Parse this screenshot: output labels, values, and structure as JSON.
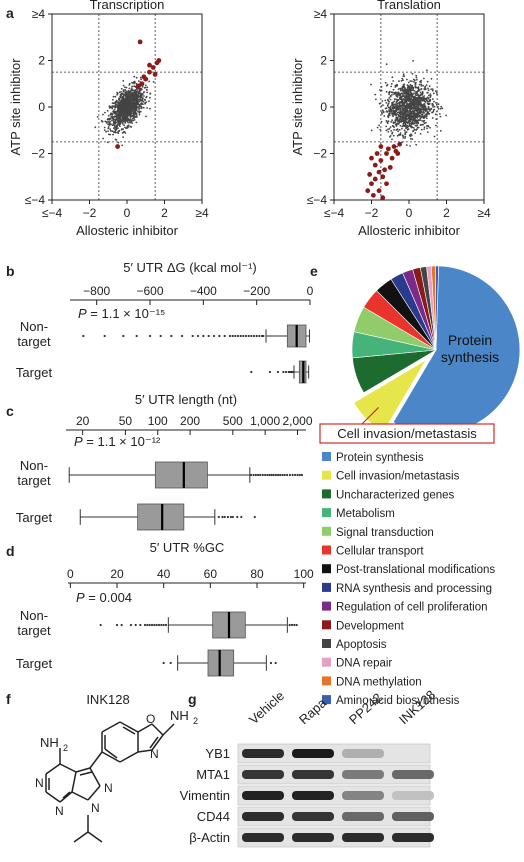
{
  "panel_letters": {
    "a": "a",
    "b": "b",
    "c": "c",
    "d": "d",
    "e": "e",
    "f": "f",
    "g": "g"
  },
  "chart_data": [
    {
      "type": "scatter",
      "panel": "a",
      "title": "Transcription",
      "xlabel": "Allosteric inhibitor",
      "ylabel": "ATP site inhibitor",
      "xlim": [
        -4,
        4
      ],
      "ylim": [
        -4,
        4
      ],
      "x_ticks": [
        "≤−4",
        "−2",
        "0",
        "2",
        "≥4"
      ],
      "y_ticks": [
        "≤−4",
        "−2",
        "0",
        "2",
        "≥4"
      ],
      "thresholds": [
        -1.5,
        1.5
      ],
      "cloud": {
        "center": [
          0,
          0
        ],
        "spread": [
          0.45,
          0.45
        ],
        "tilt": 0.55,
        "color": "#444444"
      },
      "highlight": {
        "color": "#8b1a1a",
        "points": [
          [
            0.8,
            1.0
          ],
          [
            1.0,
            1.2
          ],
          [
            1.2,
            1.5
          ],
          [
            1.4,
            1.7
          ],
          [
            1.6,
            1.9
          ],
          [
            1.5,
            1.4
          ],
          [
            0.9,
            1.3
          ],
          [
            1.2,
            1.8
          ],
          [
            0.6,
            0.9
          ],
          [
            0.7,
            2.8
          ],
          [
            1.7,
            2.0
          ],
          [
            -0.5,
            -1.7
          ]
        ]
      }
    },
    {
      "type": "scatter",
      "panel": "a",
      "title": "Translation",
      "xlabel": "Allosteric inhibitor",
      "ylabel": "ATP site inhibitor",
      "xlim": [
        -4,
        4
      ],
      "ylim": [
        -4,
        4
      ],
      "x_ticks": [
        "≤−4",
        "−2",
        "0",
        "2",
        "≥4"
      ],
      "y_ticks": [
        "≤−4",
        "−2",
        "0",
        "2",
        "≥4"
      ],
      "thresholds": [
        -1.5,
        1.5
      ],
      "cloud": {
        "center": [
          0,
          0
        ],
        "spread": [
          0.6,
          0.55
        ],
        "tilt": 0.1,
        "color": "#444444"
      },
      "highlight": {
        "color": "#8b1a1a",
        "points": [
          [
            -1.2,
            -2.0
          ],
          [
            -1.5,
            -2.3
          ],
          [
            -1.8,
            -2.5
          ],
          [
            -1.4,
            -3.0
          ],
          [
            -2.0,
            -3.3
          ],
          [
            -1.6,
            -3.6
          ],
          [
            -1.9,
            -3.8
          ],
          [
            -1.1,
            -1.8
          ],
          [
            -0.8,
            -1.7
          ],
          [
            -0.5,
            -1.6
          ],
          [
            -1.3,
            -2.7
          ],
          [
            -2.1,
            -2.9
          ],
          [
            -1.7,
            -2.0
          ],
          [
            -0.9,
            -2.2
          ],
          [
            -1.2,
            -3.3
          ],
          [
            -2.2,
            -3.6
          ],
          [
            -1.5,
            -1.7
          ],
          [
            -0.6,
            -2.0
          ],
          [
            -1.0,
            -2.6
          ],
          [
            -1.8,
            -3.1
          ],
          [
            -1.4,
            -3.9
          ],
          [
            -2.0,
            -2.2
          ],
          [
            -0.7,
            -1.9
          ],
          [
            -1.6,
            -2.8
          ]
        ]
      }
    },
    {
      "type": "boxplot",
      "panel": "b",
      "title": "5′ UTR ΔG (kcal mol⁻¹)",
      "scale": "linear",
      "xlim": [
        -900,
        0
      ],
      "ticks": [
        -800,
        -600,
        -400,
        -200,
        0
      ],
      "tick_labels": [
        "−800",
        "−600",
        "−400",
        "−200",
        "0"
      ],
      "p_value": "1.1 × 10⁻¹⁵",
      "groups": [
        {
          "label": "Non-target",
          "whisker_low": -165,
          "q1": -85,
          "median": -50,
          "q3": -15,
          "whisker_high": -2,
          "outliers": [
            -850,
            -770,
            -700,
            -650,
            -600,
            -560,
            -520,
            -480,
            -440,
            -420,
            -400,
            -380,
            -360,
            -340,
            -320,
            -300,
            -290,
            -280,
            -270,
            -260,
            -250,
            -240,
            -230,
            -220,
            -210,
            -200,
            -190,
            -180,
            -175
          ]
        },
        {
          "label": "Target",
          "whisker_low": -60,
          "q1": -40,
          "median": -25,
          "q3": -15,
          "whisker_high": -5,
          "outliers": [
            -220,
            -150,
            -120,
            -100,
            -90,
            -80,
            -75,
            -70,
            -65
          ]
        }
      ]
    },
    {
      "type": "boxplot",
      "panel": "c",
      "title": "5′ UTR length (nt)",
      "scale": "log",
      "xlim": [
        14,
        2400
      ],
      "ticks": [
        20,
        50,
        100,
        200,
        500,
        1000,
        2000
      ],
      "tick_labels": [
        "20",
        "50",
        "100",
        "200",
        "500",
        "1,000",
        "2,000"
      ],
      "p_value": "1.1 × 10⁻¹²",
      "groups": [
        {
          "label": "Non-target",
          "whisker_low": 15,
          "q1": 95,
          "median": 175,
          "q3": 290,
          "whisker_high": 720,
          "outliers": [
            740,
            780,
            820,
            860,
            900,
            950,
            1000,
            1050,
            1100,
            1150,
            1200,
            1260,
            1320,
            1380,
            1450,
            1520,
            1600,
            1700,
            1800,
            1900,
            2000,
            2100,
            2200
          ]
        },
        {
          "label": "Target",
          "whisker_low": 19,
          "q1": 65,
          "median": 110,
          "q3": 175,
          "whisker_high": 340,
          "outliers": [
            370,
            400,
            420,
            450,
            480,
            500,
            550,
            600,
            800
          ]
        }
      ]
    },
    {
      "type": "boxplot",
      "panel": "d",
      "title": "5′ UTR %GC",
      "scale": "linear",
      "xlim": [
        -1,
        101
      ],
      "ticks": [
        0,
        20,
        40,
        60,
        80,
        100
      ],
      "tick_labels": [
        "0",
        "20",
        "40",
        "60",
        "80",
        "100"
      ],
      "p_value": "0.004",
      "groups": [
        {
          "label": "Non-target",
          "whisker_low": 42,
          "q1": 61,
          "median": 68,
          "q3": 75,
          "whisker_high": 93,
          "outliers": [
            13,
            20,
            22,
            26,
            28,
            30,
            32,
            33,
            34,
            35,
            36,
            37,
            38,
            39,
            40,
            41,
            94,
            95,
            96,
            97
          ]
        },
        {
          "label": "Target",
          "whisker_low": 46,
          "q1": 59,
          "median": 64,
          "q3": 70,
          "whisker_high": 84,
          "outliers": [
            40,
            43,
            86,
            88
          ]
        }
      ]
    },
    {
      "type": "pie",
      "panel": "e",
      "label_inside": "Protein synthesis",
      "callout": "Cell invasion/metastasis",
      "slices": [
        {
          "name": "Protein synthesis",
          "value": 58,
          "color": "#4a86c8"
        },
        {
          "name": "Cell invasion/metastasis",
          "value": 8,
          "color": "#e6e64a"
        },
        {
          "name": "Uncharacterized genes",
          "value": 7,
          "color": "#1e6b30"
        },
        {
          "name": "Metabolism",
          "value": 5,
          "color": "#45b37a"
        },
        {
          "name": "Signal transduction",
          "value": 5,
          "color": "#90cc6a"
        },
        {
          "name": "Cellular transport",
          "value": 4,
          "color": "#e8342c"
        },
        {
          "name": "Post-translational modifications",
          "value": 3.5,
          "color": "#111111"
        },
        {
          "name": "RNA synthesis and processing",
          "value": 2.5,
          "color": "#2b3a8c"
        },
        {
          "name": "Regulation of cell proliferation",
          "value": 2,
          "color": "#7a2a8a"
        },
        {
          "name": "Development",
          "value": 1.5,
          "color": "#8b1a1a"
        },
        {
          "name": "Apoptosis",
          "value": 1.2,
          "color": "#444444"
        },
        {
          "name": "DNA repair",
          "value": 0.9,
          "color": "#e6a0c8"
        },
        {
          "name": "DNA methylation",
          "value": 0.8,
          "color": "#e8732c"
        },
        {
          "name": "Amino acid biosynthesis",
          "value": 0.6,
          "color": "#3a5fb0"
        }
      ]
    }
  ],
  "structure": {
    "name": "INK128",
    "nh2_top": "NH",
    "nh2_top_sub": "2",
    "nh2_left": "NH",
    "nh2_left_sub": "2",
    "atom_o": "O",
    "atom_n": "N"
  },
  "western": {
    "lanes": [
      "Vehicle",
      "Rapa",
      "PP242",
      "INK128"
    ],
    "rows": [
      {
        "label": "YB1",
        "intensity": [
          0.9,
          1.0,
          0.15,
          0.0
        ]
      },
      {
        "label": "MTA1",
        "intensity": [
          0.85,
          0.85,
          0.45,
          0.55
        ]
      },
      {
        "label": "Vimentin",
        "intensity": [
          0.95,
          0.95,
          0.4,
          0.05
        ]
      },
      {
        "label": "CD44",
        "intensity": [
          0.9,
          0.85,
          0.55,
          0.6
        ]
      },
      {
        "label": "β-Actin",
        "intensity": [
          0.9,
          0.9,
          0.9,
          0.9
        ]
      }
    ]
  }
}
